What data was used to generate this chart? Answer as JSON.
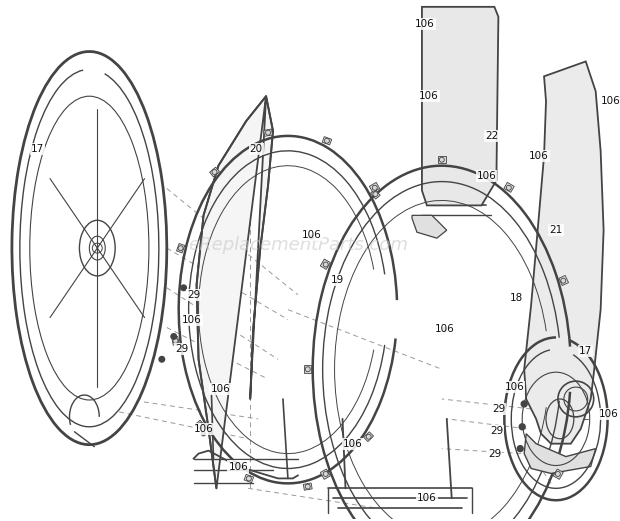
{
  "bg_color": "#ffffff",
  "line_color": "#444444",
  "label_color": "#111111",
  "watermark_text": "eReplacementParts.com",
  "watermark_color": "#c8c8c8",
  "figsize": [
    6.2,
    5.21
  ],
  "dpi": 100
}
